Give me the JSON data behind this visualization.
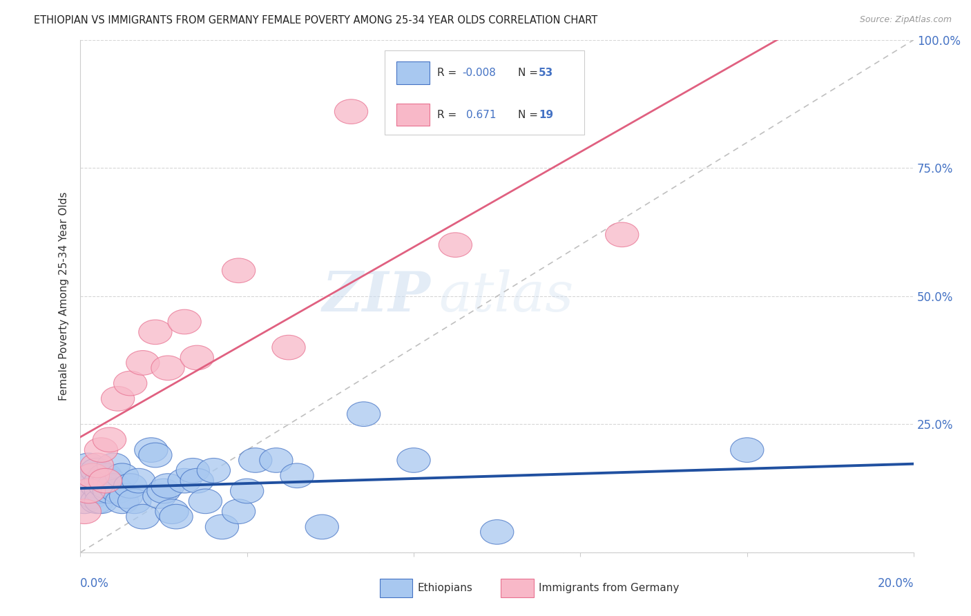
{
  "title": "ETHIOPIAN VS IMMIGRANTS FROM GERMANY FEMALE POVERTY AMONG 25-34 YEAR OLDS CORRELATION CHART",
  "source": "Source: ZipAtlas.com",
  "ylabel": "Female Poverty Among 25-34 Year Olds",
  "xlim": [
    0.0,
    0.2
  ],
  "ylim": [
    0.0,
    1.0
  ],
  "yticks": [
    0.0,
    0.25,
    0.5,
    0.75,
    1.0
  ],
  "ytick_labels": [
    "",
    "25.0%",
    "50.0%",
    "75.0%",
    "100.0%"
  ],
  "legend_R1": "-0.008",
  "legend_N1": "53",
  "legend_R2": "0.671",
  "legend_N2": "19",
  "color_blue_fill": "#a8c8f0",
  "color_blue_edge": "#4472c4",
  "color_pink_fill": "#f8b8c8",
  "color_pink_edge": "#e87090",
  "color_line_blue": "#2050a0",
  "color_line_pink": "#e06080",
  "color_diag": "#b8b8b8",
  "color_axis_label": "#4472c4",
  "background": "#ffffff",
  "watermark_zip": "ZIP",
  "watermark_atlas": "atlas",
  "ethiopians_x": [
    0.001,
    0.001,
    0.001,
    0.002,
    0.002,
    0.002,
    0.003,
    0.003,
    0.003,
    0.003,
    0.004,
    0.004,
    0.004,
    0.005,
    0.005,
    0.005,
    0.006,
    0.006,
    0.007,
    0.007,
    0.008,
    0.008,
    0.009,
    0.01,
    0.01,
    0.011,
    0.012,
    0.013,
    0.014,
    0.015,
    0.017,
    0.018,
    0.019,
    0.02,
    0.021,
    0.022,
    0.023,
    0.025,
    0.027,
    0.028,
    0.03,
    0.032,
    0.034,
    0.038,
    0.04,
    0.042,
    0.047,
    0.052,
    0.058,
    0.068,
    0.08,
    0.1,
    0.16
  ],
  "ethiopians_y": [
    0.13,
    0.15,
    0.1,
    0.14,
    0.12,
    0.17,
    0.13,
    0.11,
    0.14,
    0.12,
    0.13,
    0.1,
    0.16,
    0.14,
    0.12,
    0.1,
    0.15,
    0.13,
    0.12,
    0.14,
    0.17,
    0.13,
    0.12,
    0.15,
    0.1,
    0.11,
    0.13,
    0.1,
    0.14,
    0.07,
    0.2,
    0.19,
    0.11,
    0.12,
    0.13,
    0.08,
    0.07,
    0.14,
    0.16,
    0.14,
    0.1,
    0.16,
    0.05,
    0.08,
    0.12,
    0.18,
    0.18,
    0.15,
    0.05,
    0.27,
    0.18,
    0.04,
    0.2
  ],
  "germany_x": [
    0.001,
    0.002,
    0.003,
    0.004,
    0.005,
    0.006,
    0.007,
    0.009,
    0.012,
    0.015,
    0.018,
    0.021,
    0.025,
    0.028,
    0.038,
    0.05,
    0.065,
    0.09,
    0.13
  ],
  "germany_y": [
    0.08,
    0.12,
    0.15,
    0.17,
    0.2,
    0.14,
    0.22,
    0.3,
    0.33,
    0.37,
    0.43,
    0.36,
    0.45,
    0.38,
    0.55,
    0.4,
    0.86,
    0.6,
    0.62
  ]
}
